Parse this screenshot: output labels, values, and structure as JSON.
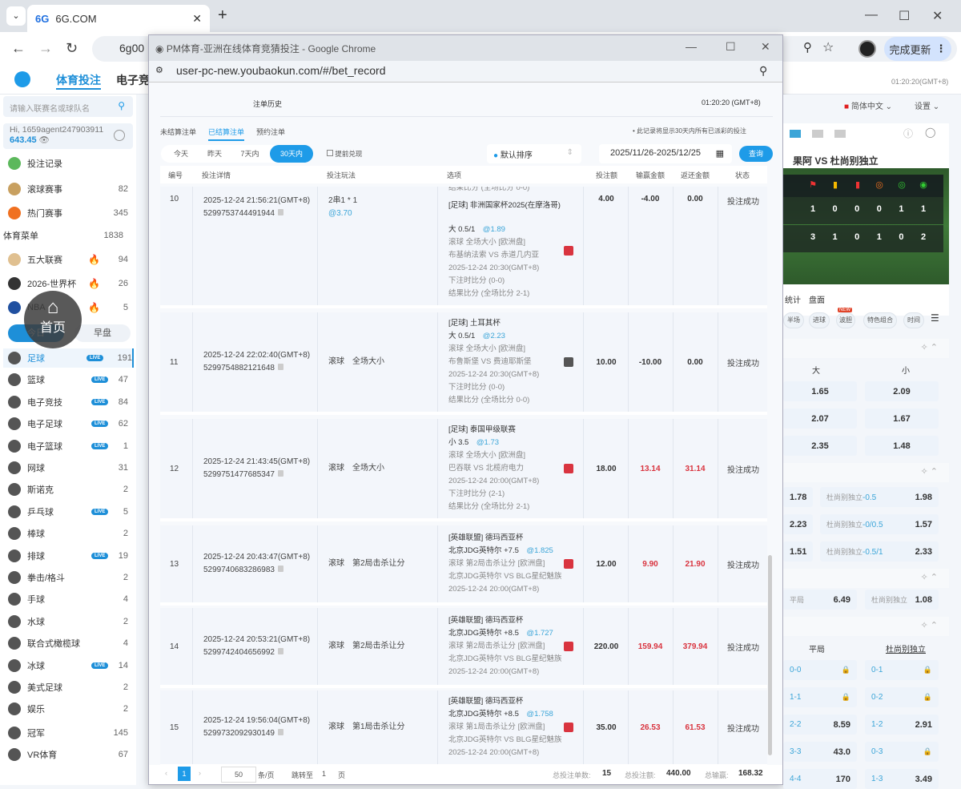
{
  "browser": {
    "tab_title": "6G.COM",
    "tab_logo": "6G",
    "address_partial": "6g00",
    "update_button": "完成更新",
    "colors": {
      "accent": "#1e9be8",
      "loss_red": "#d9343f",
      "odds_blue": "#3ba5d8"
    }
  },
  "app": {
    "nav": [
      "体育投注",
      "电子竞"
    ],
    "time": "01:20:20(GMT+8)",
    "language": "简体中文",
    "settings": "设置"
  },
  "sidebar": {
    "search_placeholder": "请输入联赛名或球队名",
    "user": "Hi, 1659agent247903911",
    "balance": "643.45",
    "home_overlay": "首页",
    "top_items": [
      {
        "label": "投注记录",
        "count": ""
      },
      {
        "label": "滚球赛事",
        "count": "82"
      },
      {
        "label": "热门赛事",
        "count": "345"
      },
      {
        "label": "体育菜单",
        "count": "1838"
      },
      {
        "label": "五大联赛",
        "count": "94",
        "hot": true
      },
      {
        "label": "2026-世界杯",
        "count": "26",
        "hot": true
      },
      {
        "label": "NBA",
        "count": "5",
        "hot": true
      }
    ],
    "day_tabs": [
      "今日",
      "早盘"
    ],
    "live_label": "LIVE",
    "sports": [
      {
        "label": "足球",
        "count": "191",
        "live": true
      },
      {
        "label": "篮球",
        "count": "47",
        "live": true
      },
      {
        "label": "电子竞技",
        "count": "84",
        "live": true
      },
      {
        "label": "电子足球",
        "count": "62",
        "live": true
      },
      {
        "label": "电子篮球",
        "count": "1",
        "live": true
      },
      {
        "label": "网球",
        "count": "31"
      },
      {
        "label": "斯诺克",
        "count": "2"
      },
      {
        "label": "乒乓球",
        "count": "5",
        "live": true
      },
      {
        "label": "棒球",
        "count": "2"
      },
      {
        "label": "排球",
        "count": "19",
        "live": true
      },
      {
        "label": "拳击/格斗",
        "count": "2"
      },
      {
        "label": "手球",
        "count": "4"
      },
      {
        "label": "水球",
        "count": "2"
      },
      {
        "label": "联合式橄榄球",
        "count": "4"
      },
      {
        "label": "冰球",
        "count": "14",
        "live": true
      },
      {
        "label": "美式足球",
        "count": "2"
      },
      {
        "label": "娱乐",
        "count": "2"
      },
      {
        "label": "冠军",
        "count": "145"
      },
      {
        "label": "VR体育",
        "count": "67"
      }
    ]
  },
  "popup": {
    "window_title": "PM体育-亚洲在线体育竞猜投注 - Google Chrome",
    "url": "user-pc-new.youbaokun.com/#/bet_record",
    "page_title": "注单历史",
    "time": "01:20:20 (GMT+8)",
    "tabs": [
      "未结算注单",
      "已结算注单",
      "预约注单"
    ],
    "active_tab": "已结算注单",
    "notice": "• 此记录将显示30天内所有已派彩的投注",
    "ranges": [
      "今天",
      "昨天",
      "7天内",
      "30天内"
    ],
    "active_range": "30天内",
    "early_cashout": "提前兑现",
    "sort": "默认排序",
    "date_range": "2025/11/26-2025/12/25",
    "query": "查询",
    "columns": [
      "编号",
      "投注详情",
      "投注玩法",
      "选项",
      "投注额",
      "输赢金额",
      "返还金额",
      "状态"
    ],
    "rows": [
      {
        "no": "10",
        "time": "2025-12-24 21:56:21(GMT+8)",
        "order": "5299753744491944",
        "play": "2串1 * 1",
        "play_odds": "@3.70",
        "pre": "结果比分 (全场比分 0-0)",
        "league": "[足球] 非洲国家杯2025(在摩洛哥)",
        "pick": "大 0.5/1",
        "odds": "@1.89",
        "market": "滚球 全场大小 [欧洲盘]",
        "teams": "布基纳法索 VS 赤道几内亚",
        "match_time": "2025-12-24 20:30(GMT+8)",
        "bet_score": "下注时比分 (0-0)",
        "result": "结果比分 (全场比分 2-1)",
        "stake": "4.00",
        "win": "-4.00",
        "return": "0.00",
        "status": "投注成功",
        "win_red": false,
        "badge": "red"
      },
      {
        "no": "11",
        "time": "2025-12-24 22:02:40(GMT+8)",
        "order": "5299754882121648",
        "play": "滚球　全场大小",
        "league": "[足球] 土耳其杯",
        "pick": "大 0.5/1",
        "odds": "@2.23",
        "market": "滚球 全场大小 [欧洲盘]",
        "teams": "布鲁斯堡 VS 费迪耶斯堡",
        "match_time": "2025-12-24 20:30(GMT+8)",
        "bet_score": "下注时比分 (0-0)",
        "result": "结果比分 (全场比分 0-0)",
        "stake": "10.00",
        "win": "-10.00",
        "return": "0.00",
        "status": "投注成功",
        "win_red": false,
        "badge": "gray"
      },
      {
        "no": "12",
        "time": "2025-12-24 21:43:45(GMT+8)",
        "order": "5299751477685347",
        "play": "滚球　全场大小",
        "league": "[足球] 泰国甲级联赛",
        "pick": "小 3.5",
        "odds": "@1.73",
        "market": "滚球 全场大小 [欧洲盘]",
        "teams": "巴吞联 VS 北榄府电力",
        "match_time": "2025-12-24 20:00(GMT+8)",
        "bet_score": "下注时比分 (2-1)",
        "result": "结果比分 (全场比分 2-1)",
        "stake": "18.00",
        "win": "13.14",
        "return": "31.14",
        "status": "投注成功",
        "win_red": true,
        "badge": "red"
      },
      {
        "no": "13",
        "time": "2025-12-24 20:43:47(GMT+8)",
        "order": "5299740683286983",
        "play": "滚球　第2局击杀让分",
        "league": "[英雄联盟] 德玛西亚杯",
        "pick": "北京JDG英特尔 +7.5",
        "odds": "@1.825",
        "market": "滚球 第2局击杀让分 [欧洲盘]",
        "teams": "北京JDG英特尔 VS BLG星纪魅族",
        "match_time": "2025-12-24 20:00(GMT+8)",
        "stake": "12.00",
        "win": "9.90",
        "return": "21.90",
        "status": "投注成功",
        "win_red": true,
        "badge": "red"
      },
      {
        "no": "14",
        "time": "2025-12-24 20:53:21(GMT+8)",
        "order": "5299742404656992",
        "play": "滚球　第2局击杀让分",
        "league": "[英雄联盟] 德玛西亚杯",
        "pick": "北京JDG英特尔 +8.5",
        "odds": "@1.727",
        "market": "滚球 第2局击杀让分 [欧洲盘]",
        "teams": "北京JDG英特尔 VS BLG星纪魅族",
        "match_time": "2025-12-24 20:00(GMT+8)",
        "stake": "220.00",
        "win": "159.94",
        "return": "379.94",
        "status": "投注成功",
        "win_red": true,
        "badge": "red"
      },
      {
        "no": "15",
        "time": "2025-12-24 19:56:04(GMT+8)",
        "order": "5299732092930149",
        "play": "滚球　第1局击杀让分",
        "league": "[英雄联盟] 德玛西亚杯",
        "pick": "北京JDG英特尔 +8.5",
        "odds": "@1.758",
        "market": "滚球 第1局击杀让分 [欧洲盘]",
        "teams": "北京JDG英特尔 VS BLG星纪魅族",
        "match_time": "2025-12-24 20:00(GMT+8)",
        "stake": "35.00",
        "win": "26.53",
        "return": "61.53",
        "status": "投注成功",
        "win_red": true,
        "badge": "red"
      }
    ],
    "pager": {
      "page": "1",
      "page_size": "50",
      "per_page": "条/页",
      "goto": "跳转至",
      "goto_page": "1",
      "page_unit": "页",
      "total_count_label": "总投注单数:",
      "total_count": "15",
      "total_stake_label": "总投注额:",
      "total_stake": "440.00",
      "total_win_label": "总输赢:",
      "total_win": "168.32"
    }
  },
  "right": {
    "match": "果阿 VS 杜尚别独立",
    "stats_home": [
      "1",
      "0",
      "0",
      "0",
      "1",
      "1"
    ],
    "stats_away": [
      "3",
      "1",
      "0",
      "1",
      "0",
      "2"
    ],
    "stat_icons": [
      "corner-icon",
      "yellow-card-icon",
      "red-card-icon",
      "penalty-icon",
      "substitution-icon",
      "goal-icon"
    ],
    "view_tabs": [
      "统计",
      "盘面"
    ],
    "chips": [
      "半场",
      "进球",
      "波胆",
      "特色组合",
      "时间"
    ],
    "new_badge": "NEW",
    "ou_headers": [
      "大",
      "小"
    ],
    "ou": [
      [
        "1.65",
        "2.09"
      ],
      [
        "2.07",
        "1.67"
      ],
      [
        "2.35",
        "1.48"
      ]
    ],
    "handicap": [
      {
        "home": "1.78",
        "away_label": "杜尚别独立",
        "away_line": "-0.5",
        "away": "1.98"
      },
      {
        "home": "2.23",
        "away_label": "杜尚别独立",
        "away_line": "-0/0.5",
        "away": "1.57"
      },
      {
        "home": "1.51",
        "away_label": "杜尚别独立",
        "away_line": "-0.5/1",
        "away": "2.33"
      }
    ],
    "x12": {
      "draw_label": "平局",
      "draw": "6.49",
      "away_label": "杜尚别独立",
      "away": "1.08"
    },
    "cs_headers": [
      "平局",
      "杜尚别独立"
    ],
    "cs": [
      [
        {
          "s": "0-0",
          "o": ""
        },
        {
          "s": "0-1",
          "o": ""
        }
      ],
      [
        {
          "s": "1-1",
          "o": ""
        },
        {
          "s": "0-2",
          "o": ""
        }
      ],
      [
        {
          "s": "2-2",
          "o": "8.59"
        },
        {
          "s": "1-2",
          "o": "2.91"
        }
      ],
      [
        {
          "s": "3-3",
          "o": "43.0"
        },
        {
          "s": "0-3",
          "o": ""
        }
      ],
      [
        {
          "s": "4-4",
          "o": "170"
        },
        {
          "s": "1-3",
          "o": "3.49"
        }
      ]
    ]
  }
}
